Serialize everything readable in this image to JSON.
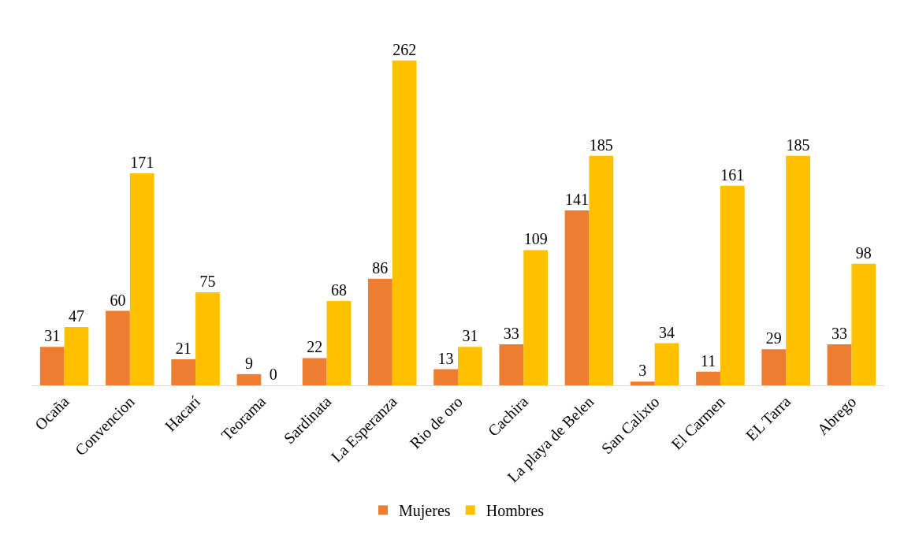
{
  "chart_data": {
    "type": "bar",
    "categories": [
      "Ocaña",
      "Convencion",
      "Hacarí",
      "Teorama",
      "Sardinata",
      "La Esperanza",
      "Rio de oro",
      "Cachira",
      "La playa de Belen",
      "San Calixto",
      "El Carmen",
      "EL Tarra",
      "Abrego"
    ],
    "series": [
      {
        "name": "Mujeres",
        "color": "#ed7d31",
        "values": [
          31,
          60,
          21,
          9,
          22,
          86,
          13,
          33,
          141,
          3,
          11,
          29,
          33
        ]
      },
      {
        "name": "Hombres",
        "color": "#ffc000",
        "values": [
          47,
          171,
          75,
          0,
          68,
          262,
          31,
          109,
          185,
          34,
          161,
          185,
          98
        ]
      }
    ],
    "data_labels": true,
    "legend": "bottom"
  }
}
